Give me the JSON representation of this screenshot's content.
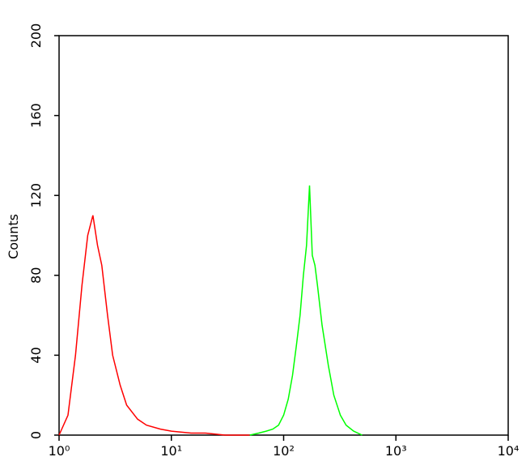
{
  "chart_data": {
    "type": "line",
    "y_label": "Counts",
    "xlim": [
      1,
      10000
    ],
    "x_log": true,
    "xticks": [
      {
        "value": 1,
        "label": "10⁰"
      },
      {
        "value": 10,
        "label": "10¹"
      },
      {
        "value": 100,
        "label": "10²"
      },
      {
        "value": 1000,
        "label": "10³"
      },
      {
        "value": 10000,
        "label": "10⁴"
      }
    ],
    "ylim": [
      0,
      200
    ],
    "yticks": [
      0,
      40,
      80,
      120,
      160,
      200
    ],
    "series": [
      {
        "color": "#ff0000",
        "x": [
          1,
          1.2,
          1.4,
          1.6,
          1.8,
          2.0,
          2.2,
          2.4,
          2.7,
          3.0,
          3.5,
          4,
          5,
          6,
          8,
          10,
          15,
          20,
          30,
          40,
          50
        ],
        "values": [
          0,
          10,
          40,
          75,
          100,
          110,
          95,
          85,
          60,
          40,
          25,
          15,
          8,
          5,
          3,
          2,
          1,
          1,
          0,
          0,
          0
        ]
      },
      {
        "color": "#00ff00",
        "x": [
          50,
          60,
          70,
          80,
          90,
          100,
          110,
          120,
          130,
          140,
          150,
          160,
          170,
          180,
          190,
          200,
          220,
          250,
          280,
          320,
          360,
          420,
          500
        ],
        "values": [
          0,
          1,
          2,
          3,
          5,
          10,
          18,
          30,
          45,
          60,
          80,
          95,
          125,
          90,
          85,
          75,
          55,
          35,
          20,
          10,
          5,
          2,
          0
        ]
      }
    ]
  }
}
